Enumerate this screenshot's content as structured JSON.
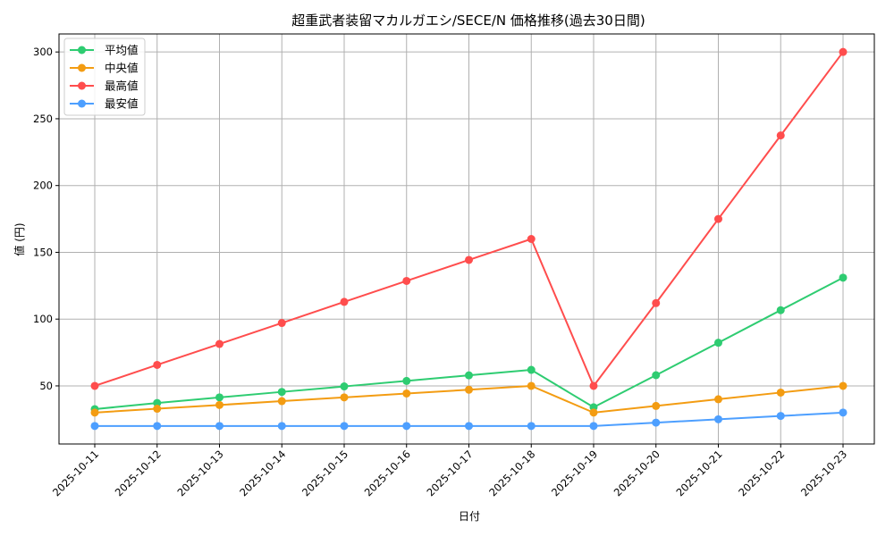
{
  "chart_data": {
    "type": "line",
    "title": "超重武者装留マカルガエシ/SECE/N 価格推移(過去30日間)",
    "xlabel": "日付",
    "ylabel": "値 (円)",
    "categories": [
      "2025-10-11",
      "2025-10-12",
      "2025-10-13",
      "2025-10-14",
      "2025-10-15",
      "2025-10-16",
      "2025-10-17",
      "2025-10-18",
      "2025-10-19",
      "2025-10-20",
      "2025-10-21",
      "2025-10-22",
      "2025-10-23"
    ],
    "series": [
      {
        "name": "平均値",
        "color": "#2ecc71",
        "values": [
          32.6,
          37.2,
          41.4,
          45.5,
          49.6,
          53.7,
          57.9,
          62.0,
          34.0,
          58.0,
          82.3,
          106.7,
          131.0
        ]
      },
      {
        "name": "中央値",
        "color": "#f39c12",
        "values": [
          30.0,
          32.9,
          35.7,
          38.6,
          41.4,
          44.3,
          47.1,
          50.0,
          30.0,
          35.0,
          40.0,
          45.0,
          50.0
        ]
      },
      {
        "name": "最高値",
        "color": "#ff4d4d",
        "values": [
          50.0,
          65.7,
          81.4,
          97.1,
          112.9,
          128.6,
          144.3,
          160.0,
          50.0,
          112.0,
          175.0,
          237.5,
          300.0
        ]
      },
      {
        "name": "最安値",
        "color": "#4d9fff",
        "values": [
          20.0,
          20.0,
          20.0,
          20.0,
          20.0,
          20.0,
          20.0,
          20.0,
          20.0,
          22.5,
          25.0,
          27.5,
          30.0
        ]
      }
    ],
    "yticks": [
      50,
      100,
      150,
      200,
      250,
      300
    ],
    "ylim": [
      6.5,
      313.5
    ],
    "grid": true,
    "legend_position": "upper left"
  }
}
